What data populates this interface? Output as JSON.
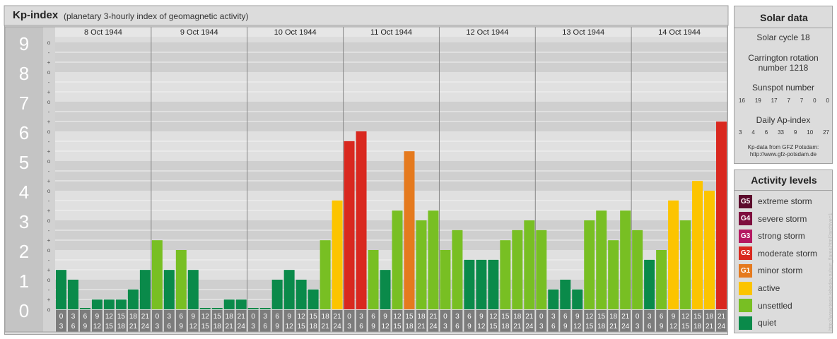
{
  "header": {
    "title": "Kp-index",
    "subtitle": "(planetary 3-hourly index of geomagnetic activity)"
  },
  "chart_data": {
    "type": "bar",
    "title": "Kp-index",
    "subtitle": "(planetary 3-hourly index of geomagnetic activity)",
    "ylim": [
      0,
      9
    ],
    "y_tick_labels": [
      "0",
      "1",
      "2",
      "3",
      "4",
      "5",
      "6",
      "7",
      "8",
      "9"
    ],
    "y_minor_labels": [
      "o",
      "+",
      "-"
    ],
    "days": [
      "8 Oct 1944",
      "9 Oct 1944",
      "10 Oct 1944",
      "11 Oct 1944",
      "12 Oct 1944",
      "13 Oct 1944",
      "14 Oct 1944"
    ],
    "interval_start_labels": [
      "0",
      "3",
      "6",
      "9",
      "12",
      "15",
      "18",
      "21"
    ],
    "interval_end_labels": [
      "3",
      "6",
      "9",
      "12",
      "15",
      "18",
      "21",
      "24"
    ],
    "values": [
      [
        1.33,
        1.0,
        0.0,
        0.33,
        0.33,
        0.33,
        0.67,
        1.33
      ],
      [
        2.33,
        1.33,
        2.0,
        1.33,
        0.0,
        0.0,
        0.33,
        0.33
      ],
      [
        0.0,
        0.0,
        1.0,
        1.33,
        1.0,
        0.67,
        2.33,
        3.67
      ],
      [
        5.67,
        6.0,
        2.0,
        1.33,
        3.33,
        5.33,
        3.0,
        3.33
      ],
      [
        2.0,
        2.67,
        1.67,
        1.67,
        1.67,
        2.33,
        2.67,
        3.0
      ],
      [
        2.67,
        0.67,
        1.0,
        0.67,
        3.0,
        3.33,
        2.33,
        3.33
      ],
      [
        2.67,
        1.67,
        2.0,
        3.67,
        3.0,
        4.33,
        4.0,
        6.33
      ]
    ],
    "grid": true,
    "legend": "right"
  },
  "solar": {
    "title": "Solar data",
    "cycle": "Solar cycle 18",
    "carrington_line1": "Carrington rotation",
    "carrington_line2": "number 1218",
    "sunspot_title": "Sunspot number",
    "sunspot_values": [
      "16",
      "19",
      "17",
      "7",
      "7",
      "0",
      "0"
    ],
    "ap_title": "Daily Ap-index",
    "ap_values": [
      "3",
      "4",
      "6",
      "33",
      "9",
      "10",
      "27"
    ],
    "source_line1": "Kp-data from GFZ Potsdam:",
    "source_line2": "http://www.gfz-potsdam.de"
  },
  "levels": {
    "title": "Activity levels",
    "items": [
      {
        "code": "G5",
        "label": "extreme storm",
        "color": "#5c0a2c"
      },
      {
        "code": "G4",
        "label": "severe storm",
        "color": "#7e0e3e"
      },
      {
        "code": "G3",
        "label": "strong storm",
        "color": "#b51861"
      },
      {
        "code": "G2",
        "label": "moderate storm",
        "color": "#d9281f"
      },
      {
        "code": "G1",
        "label": "minor storm",
        "color": "#e57a1e"
      },
      {
        "code": "",
        "label": "active",
        "color": "#fcc400"
      },
      {
        "code": "",
        "label": "unsettled",
        "color": "#78bf23"
      },
      {
        "code": "",
        "label": "quiet",
        "color": "#0a8a4a"
      }
    ]
  },
  "watermark": "http://www.tesis.lebedev.ru/sun_flares.html?archive=1"
}
